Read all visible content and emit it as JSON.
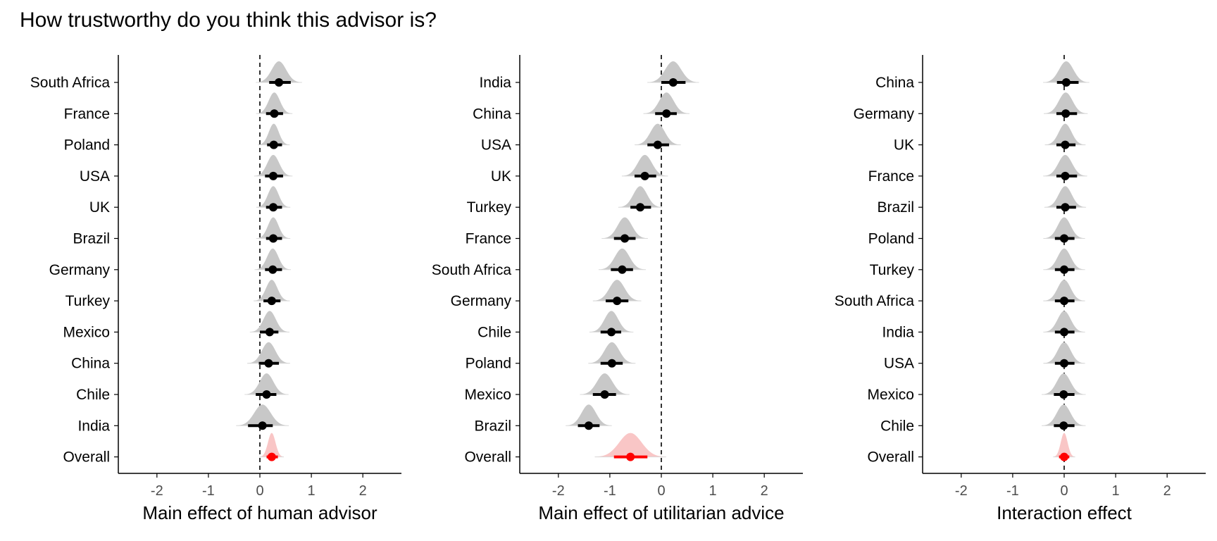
{
  "title": "How trustworthy do you think this advisor is?",
  "colors": {
    "country": "#000000",
    "overall": "#ff0000",
    "density_country": "#c8c8c8",
    "density_overall": "#f9c6c6"
  },
  "chart_data": [
    {
      "type": "forest",
      "xlabel": "Main effect of human advisor",
      "xlim": [
        -2.75,
        2.75
      ],
      "xticks": [
        -2,
        -1,
        0,
        1,
        2
      ],
      "categories": [
        "South Africa",
        "France",
        "Poland",
        "USA",
        "UK",
        "Brazil",
        "Germany",
        "Turkey",
        "Mexico",
        "China",
        "Chile",
        "India",
        "Overall"
      ],
      "estimates": [
        0.37,
        0.28,
        0.27,
        0.26,
        0.26,
        0.26,
        0.25,
        0.23,
        0.19,
        0.17,
        0.13,
        0.05,
        0.23
      ],
      "ci_low": [
        0.18,
        0.12,
        0.14,
        0.1,
        0.12,
        0.12,
        0.1,
        0.07,
        0.0,
        -0.02,
        -0.08,
        -0.23,
        0.13
      ],
      "ci_high": [
        0.6,
        0.45,
        0.43,
        0.45,
        0.43,
        0.43,
        0.43,
        0.4,
        0.36,
        0.37,
        0.32,
        0.25,
        0.35
      ]
    },
    {
      "type": "forest",
      "xlabel": "Main effect of utilitarian advice",
      "xlim": [
        -2.75,
        2.75
      ],
      "xticks": [
        -2,
        -1,
        0,
        1,
        2
      ],
      "categories": [
        "India",
        "China",
        "USA",
        "UK",
        "Turkey",
        "France",
        "South Africa",
        "Germany",
        "Chile",
        "Poland",
        "Mexico",
        "Brazil",
        "Overall"
      ],
      "estimates": [
        0.23,
        0.1,
        -0.07,
        -0.32,
        -0.41,
        -0.71,
        -0.76,
        -0.86,
        -0.97,
        -0.96,
        -1.1,
        -1.41,
        -0.6
      ],
      "ci_low": [
        0.0,
        -0.12,
        -0.27,
        -0.52,
        -0.6,
        -0.92,
        -0.98,
        -1.08,
        -1.18,
        -1.18,
        -1.33,
        -1.62,
        -0.92
      ],
      "ci_high": [
        0.47,
        0.3,
        0.15,
        -0.1,
        -0.2,
        -0.5,
        -0.55,
        -0.64,
        -0.78,
        -0.75,
        -0.88,
        -1.2,
        -0.27
      ]
    },
    {
      "type": "forest",
      "xlabel": "Interaction effect",
      "xlim": [
        -2.75,
        2.75
      ],
      "xticks": [
        -2,
        -1,
        0,
        1,
        2
      ],
      "categories": [
        "China",
        "Germany",
        "UK",
        "France",
        "Brazil",
        "Poland",
        "Turkey",
        "South Africa",
        "India",
        "USA",
        "Mexico",
        "Chile",
        "Overall"
      ],
      "estimates": [
        0.04,
        0.03,
        0.02,
        0.02,
        0.02,
        0.0,
        0.0,
        0.0,
        0.0,
        0.0,
        -0.01,
        -0.01,
        0.0
      ],
      "ci_low": [
        -0.14,
        -0.15,
        -0.15,
        -0.15,
        -0.15,
        -0.18,
        -0.18,
        -0.18,
        -0.18,
        -0.18,
        -0.2,
        -0.2,
        -0.1
      ],
      "ci_high": [
        0.28,
        0.25,
        0.22,
        0.25,
        0.23,
        0.2,
        0.2,
        0.2,
        0.2,
        0.2,
        0.2,
        0.2,
        0.1
      ]
    }
  ]
}
